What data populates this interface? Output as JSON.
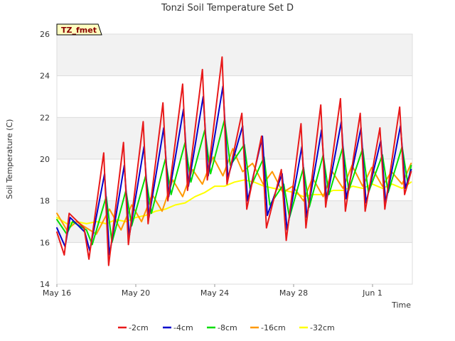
{
  "chart_data": {
    "type": "line",
    "title": "Tonzi Soil Temperature Set D",
    "xlabel": "Time",
    "ylabel": "Soil Temperature (C)",
    "ylim": [
      14,
      26
    ],
    "yticks": [
      14,
      16,
      18,
      20,
      22,
      24,
      26
    ],
    "xlim": [
      "2024-05-16",
      "2024-06-03"
    ],
    "xticks": [
      {
        "date": "2024-05-16",
        "label": "May 16"
      },
      {
        "date": "2024-05-20",
        "label": "May 20"
      },
      {
        "date": "2024-05-24",
        "label": "May 24"
      },
      {
        "date": "2024-05-28",
        "label": "May 28"
      },
      {
        "date": "2024-06-01",
        "label": "Jun 1"
      }
    ],
    "background_bands": "alternating light gray",
    "legend_position": "bottom",
    "annotation": "TZ_fmet",
    "series": [
      {
        "name": "-2cm",
        "color": "#e8191a",
        "x": [
          "2024-05-16T00:00",
          "2024-05-16T09:00",
          "2024-05-16T15:00",
          "2024-05-17T09:00",
          "2024-05-17T15:00",
          "2024-05-18T09:00",
          "2024-05-18T15:00",
          "2024-05-19T09:00",
          "2024-05-19T15:00",
          "2024-05-20T09:00",
          "2024-05-20T15:00",
          "2024-05-21T09:00",
          "2024-05-21T15:00",
          "2024-05-22T09:00",
          "2024-05-22T15:00",
          "2024-05-23T09:00",
          "2024-05-23T15:00",
          "2024-05-24T09:00",
          "2024-05-24T15:00",
          "2024-05-25T09:00",
          "2024-05-25T15:00",
          "2024-05-26T09:00",
          "2024-05-26T15:00",
          "2024-05-27T09:00",
          "2024-05-27T15:00",
          "2024-05-28T09:00",
          "2024-05-28T15:00",
          "2024-05-29T09:00",
          "2024-05-29T15:00",
          "2024-05-30T09:00",
          "2024-05-30T15:00",
          "2024-05-31T09:00",
          "2024-05-31T15:00",
          "2024-06-01T09:00",
          "2024-06-01T15:00",
          "2024-06-02T09:00",
          "2024-06-02T15:00",
          "2024-06-02T23:00"
        ],
        "y": [
          16.5,
          15.4,
          17.4,
          16.7,
          15.2,
          20.3,
          14.9,
          20.8,
          15.9,
          21.8,
          16.9,
          22.7,
          18.0,
          23.6,
          18.5,
          24.3,
          19.0,
          24.9,
          18.8,
          22.2,
          17.6,
          21.1,
          16.7,
          19.5,
          16.1,
          21.7,
          16.7,
          22.6,
          17.7,
          22.9,
          17.5,
          22.2,
          17.5,
          21.5,
          17.6,
          22.5,
          18.3,
          19.4
        ]
      },
      {
        "name": "-4cm",
        "color": "#0000cc",
        "x": [
          "2024-05-16T00:00",
          "2024-05-16T10:00",
          "2024-05-16T16:00",
          "2024-05-17T10:00",
          "2024-05-17T16:00",
          "2024-05-18T10:00",
          "2024-05-18T16:00",
          "2024-05-19T10:00",
          "2024-05-19T16:00",
          "2024-05-20T10:00",
          "2024-05-20T16:00",
          "2024-05-21T10:00",
          "2024-05-21T16:00",
          "2024-05-22T10:00",
          "2024-05-22T16:00",
          "2024-05-23T10:00",
          "2024-05-23T16:00",
          "2024-05-24T10:00",
          "2024-05-24T16:00",
          "2024-05-25T10:00",
          "2024-05-25T16:00",
          "2024-05-26T10:00",
          "2024-05-26T16:00",
          "2024-05-27T10:00",
          "2024-05-27T16:00",
          "2024-05-28T10:00",
          "2024-05-28T16:00",
          "2024-05-29T10:00",
          "2024-05-29T16:00",
          "2024-05-30T10:00",
          "2024-05-30T16:00",
          "2024-05-31T10:00",
          "2024-05-31T16:00",
          "2024-06-01T10:00",
          "2024-06-01T16:00",
          "2024-06-02T10:00",
          "2024-06-02T16:00",
          "2024-06-02T23:00"
        ],
        "y": [
          16.7,
          15.8,
          17.2,
          16.5,
          15.6,
          19.3,
          15.4,
          19.7,
          16.3,
          20.6,
          17.2,
          21.5,
          18.2,
          22.4,
          18.7,
          23.0,
          19.2,
          23.5,
          19.1,
          21.6,
          18.0,
          21.1,
          17.3,
          19.3,
          16.6,
          20.6,
          17.2,
          21.4,
          18.0,
          21.8,
          18.1,
          21.5,
          17.9,
          20.9,
          17.9,
          21.6,
          18.6,
          19.5
        ]
      },
      {
        "name": "-8cm",
        "color": "#00dd00",
        "x": [
          "2024-05-16T00:00",
          "2024-05-16T12:00",
          "2024-05-16T19:00",
          "2024-05-17T12:00",
          "2024-05-17T19:00",
          "2024-05-18T12:00",
          "2024-05-18T19:00",
          "2024-05-19T12:00",
          "2024-05-19T19:00",
          "2024-05-20T12:00",
          "2024-05-20T19:00",
          "2024-05-21T12:00",
          "2024-05-21T19:00",
          "2024-05-22T12:00",
          "2024-05-22T19:00",
          "2024-05-23T12:00",
          "2024-05-23T19:00",
          "2024-05-24T12:00",
          "2024-05-24T19:00",
          "2024-05-25T12:00",
          "2024-05-25T19:00",
          "2024-05-26T12:00",
          "2024-05-26T19:00",
          "2024-05-27T12:00",
          "2024-05-27T19:00",
          "2024-05-28T12:00",
          "2024-05-28T19:00",
          "2024-05-29T12:00",
          "2024-05-29T19:00",
          "2024-05-30T12:00",
          "2024-05-30T19:00",
          "2024-05-31T12:00",
          "2024-05-31T19:00",
          "2024-06-01T12:00",
          "2024-06-01T19:00",
          "2024-06-02T12:00",
          "2024-06-02T19:00",
          "2024-06-02T23:00"
        ],
        "y": [
          17.1,
          16.4,
          17.0,
          16.6,
          15.9,
          18.2,
          16.0,
          18.5,
          16.8,
          19.2,
          17.4,
          20.0,
          18.3,
          20.8,
          18.9,
          21.4,
          19.3,
          21.9,
          19.7,
          20.7,
          18.6,
          20.1,
          17.8,
          18.8,
          17.2,
          19.6,
          17.7,
          20.2,
          18.3,
          20.6,
          18.5,
          20.5,
          18.4,
          20.2,
          18.4,
          20.6,
          18.8,
          19.7
        ]
      },
      {
        "name": "-16cm",
        "color": "#ff9900",
        "x": [
          "2024-05-16T00:00",
          "2024-05-16T12:00",
          "2024-05-17T00:00",
          "2024-05-17T12:00",
          "2024-05-18T00:00",
          "2024-05-18T16:00",
          "2024-05-19T06:00",
          "2024-05-19T19:00",
          "2024-05-20T07:00",
          "2024-05-20T20:00",
          "2024-05-21T08:00",
          "2024-05-21T21:00",
          "2024-05-22T09:00",
          "2024-05-22T21:00",
          "2024-05-23T09:00",
          "2024-05-23T22:00",
          "2024-05-24T10:00",
          "2024-05-24T22:00",
          "2024-05-25T10:00",
          "2024-05-25T22:00",
          "2024-05-26T11:00",
          "2024-05-26T22:00",
          "2024-05-27T11:00",
          "2024-05-27T23:00",
          "2024-05-28T12:00",
          "2024-05-28T23:00",
          "2024-05-29T12:00",
          "2024-05-29T23:00",
          "2024-05-30T12:00",
          "2024-05-30T23:00",
          "2024-05-31T12:00",
          "2024-05-31T23:00",
          "2024-06-01T12:00",
          "2024-06-01T23:00",
          "2024-06-02T12:00",
          "2024-06-02T23:00"
        ],
        "y": [
          17.4,
          16.6,
          17.0,
          16.7,
          16.4,
          17.6,
          16.6,
          17.8,
          17.0,
          18.3,
          17.5,
          19.0,
          18.2,
          19.5,
          18.8,
          20.1,
          19.2,
          20.5,
          19.4,
          19.8,
          18.8,
          19.4,
          18.4,
          18.7,
          18.0,
          19.1,
          18.2,
          19.4,
          18.6,
          19.7,
          18.7,
          19.6,
          18.7,
          19.4,
          18.8,
          19.8
        ]
      },
      {
        "name": "-32cm",
        "color": "#ffff00",
        "x": [
          "2024-05-16T00:00",
          "2024-05-16T12:00",
          "2024-05-17T00:00",
          "2024-05-17T12:00",
          "2024-05-18T00:00",
          "2024-05-18T12:00",
          "2024-05-19T00:00",
          "2024-05-19T12:00",
          "2024-05-20T00:00",
          "2024-05-20T12:00",
          "2024-05-21T00:00",
          "2024-05-21T12:00",
          "2024-05-22T00:00",
          "2024-05-22T12:00",
          "2024-05-23T00:00",
          "2024-05-23T12:00",
          "2024-05-24T00:00",
          "2024-05-24T12:00",
          "2024-05-25T00:00",
          "2024-05-25T12:00",
          "2024-05-26T00:00",
          "2024-05-26T12:00",
          "2024-05-27T00:00",
          "2024-05-27T12:00",
          "2024-05-28T00:00",
          "2024-05-28T12:00",
          "2024-05-29T00:00",
          "2024-05-29T12:00",
          "2024-05-30T00:00",
          "2024-05-30T12:00",
          "2024-05-31T00:00",
          "2024-05-31T12:00",
          "2024-06-01T00:00",
          "2024-06-01T12:00",
          "2024-06-02T00:00",
          "2024-06-02T12:00",
          "2024-06-02T23:00"
        ],
        "y": [
          17.2,
          16.9,
          17.0,
          16.9,
          17.0,
          16.9,
          17.1,
          17.0,
          17.2,
          17.3,
          17.5,
          17.6,
          17.8,
          17.9,
          18.2,
          18.4,
          18.7,
          18.7,
          18.9,
          19.0,
          18.9,
          18.7,
          18.6,
          18.5,
          18.4,
          18.2,
          18.3,
          18.3,
          18.5,
          18.5,
          18.7,
          18.6,
          18.8,
          18.6,
          18.8,
          18.6,
          18.9
        ]
      }
    ]
  }
}
